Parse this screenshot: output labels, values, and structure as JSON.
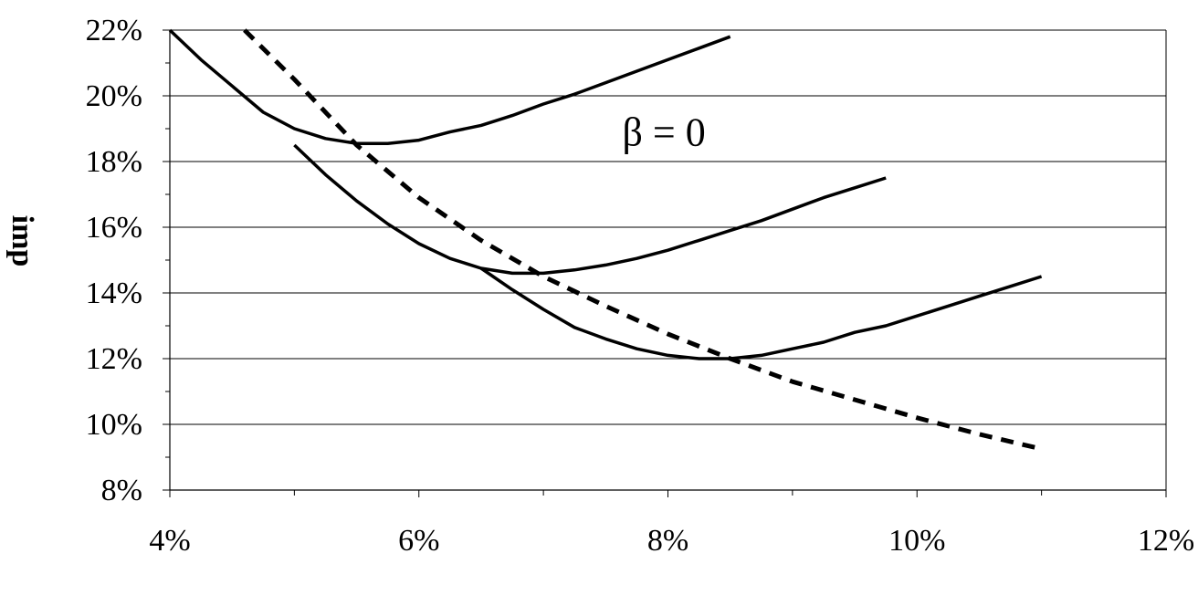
{
  "chart_data": {
    "type": "line",
    "title": "",
    "xlabel": "",
    "ylabel": "imp",
    "xlim": [
      4,
      12
    ],
    "ylim": [
      8,
      22
    ],
    "x_ticks": [
      4,
      6,
      8,
      10,
      12
    ],
    "x_tick_labels": [
      "4%",
      "6%",
      "8%",
      "10%",
      "12%"
    ],
    "y_ticks": [
      8,
      10,
      12,
      14,
      16,
      18,
      20,
      22
    ],
    "y_tick_labels": [
      "8%",
      "10%",
      "12%",
      "14%",
      "16%",
      "18%",
      "20%",
      "22%"
    ],
    "grid": "horizontal",
    "legend": "none",
    "annotations": [
      {
        "text": "β = 0",
        "x": 8.0,
        "y": 18.9
      }
    ],
    "series": [
      {
        "style": "solid",
        "color": "#000000",
        "x": [
          4.0,
          4.25,
          4.5,
          4.75,
          5.0,
          5.25,
          5.5,
          5.75,
          6.0,
          6.25,
          6.5,
          6.75,
          7.0,
          7.25,
          7.5,
          7.75,
          8.0,
          8.25,
          8.5
        ],
        "y": [
          22.0,
          21.1,
          20.3,
          19.5,
          19.0,
          18.7,
          18.55,
          18.55,
          18.65,
          18.9,
          19.1,
          19.4,
          19.75,
          20.05,
          20.4,
          20.75,
          21.1,
          21.45,
          21.8
        ]
      },
      {
        "style": "solid",
        "color": "#000000",
        "x": [
          5.0,
          5.25,
          5.5,
          5.75,
          6.0,
          6.25,
          6.5,
          6.75,
          7.0,
          7.25,
          7.5,
          7.75,
          8.0,
          8.25,
          8.5,
          8.75,
          9.0,
          9.25,
          9.5,
          9.75
        ],
        "y": [
          18.5,
          17.6,
          16.8,
          16.1,
          15.5,
          15.05,
          14.75,
          14.6,
          14.6,
          14.7,
          14.85,
          15.05,
          15.3,
          15.6,
          15.9,
          16.2,
          16.55,
          16.9,
          17.2,
          17.5
        ]
      },
      {
        "style": "solid",
        "color": "#000000",
        "x": [
          6.5,
          6.75,
          7.0,
          7.25,
          7.5,
          7.75,
          8.0,
          8.25,
          8.5,
          8.75,
          9.0,
          9.25,
          9.5,
          9.75,
          10.0,
          10.25,
          10.5,
          10.75,
          11.0
        ],
        "y": [
          14.75,
          14.1,
          13.5,
          12.95,
          12.6,
          12.3,
          12.1,
          12.0,
          12.0,
          12.1,
          12.3,
          12.5,
          12.8,
          13.0,
          13.3,
          13.6,
          13.9,
          14.2,
          14.5
        ]
      },
      {
        "style": "dashed",
        "color": "#000000",
        "x": [
          4.6,
          5.0,
          5.5,
          6.0,
          6.5,
          7.0,
          7.5,
          8.0,
          8.5,
          9.0,
          9.5,
          10.0,
          10.5,
          11.0
        ],
        "y": [
          22.0,
          20.5,
          18.5,
          16.9,
          15.6,
          14.5,
          13.6,
          12.75,
          12.0,
          11.3,
          10.75,
          10.2,
          9.7,
          9.25
        ]
      }
    ]
  }
}
